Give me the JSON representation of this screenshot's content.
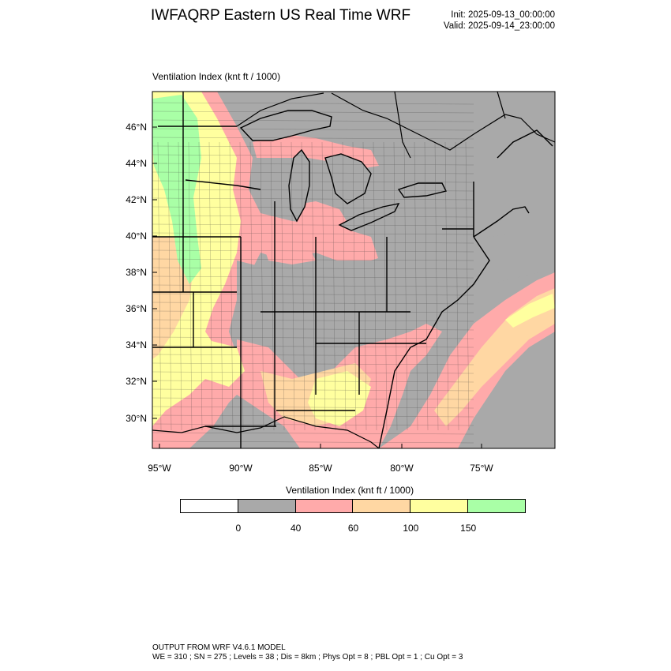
{
  "header": {
    "title": "IWFAQRP Eastern US Real Time WRF",
    "init": "Init: 2025-09-13_00:00:00",
    "valid": "Valid: 2025-09-14_23:00:00"
  },
  "panel": {
    "title": "Ventilation Index   (knt ft / 1000)"
  },
  "map": {
    "lat_labels": [
      "46°N",
      "44°N",
      "42°N",
      "40°N",
      "38°N",
      "36°N",
      "34°N",
      "32°N",
      "30°N"
    ],
    "lon_labels": [
      "95°W",
      "90°W",
      "85°W",
      "80°W",
      "75°W"
    ],
    "colors": {
      "background": "#a9a9a9",
      "pink": "#ffaaaa",
      "orange": "#ffd7a3",
      "yellow": "#ffff9f",
      "green": "#a9ffa6",
      "white": "#ffffff"
    }
  },
  "colorbar": {
    "title": "Ventilation Index  (knt ft / 1000)",
    "colors": [
      "#ffffff",
      "#a9a9a9",
      "#ffaaaa",
      "#ffd7a3",
      "#ffff9f",
      "#a9ffa6"
    ],
    "labels": [
      "0",
      "40",
      "60",
      "100",
      "150"
    ]
  },
  "footer": {
    "line1": "OUTPUT FROM WRF V4.6.1 MODEL",
    "line2": "WE = 310 ; SN = 275 ; Levels = 38 ; Dis = 8km ; Phys Opt = 8 ; PBL Opt = 1 ; Cu Opt = 3"
  }
}
